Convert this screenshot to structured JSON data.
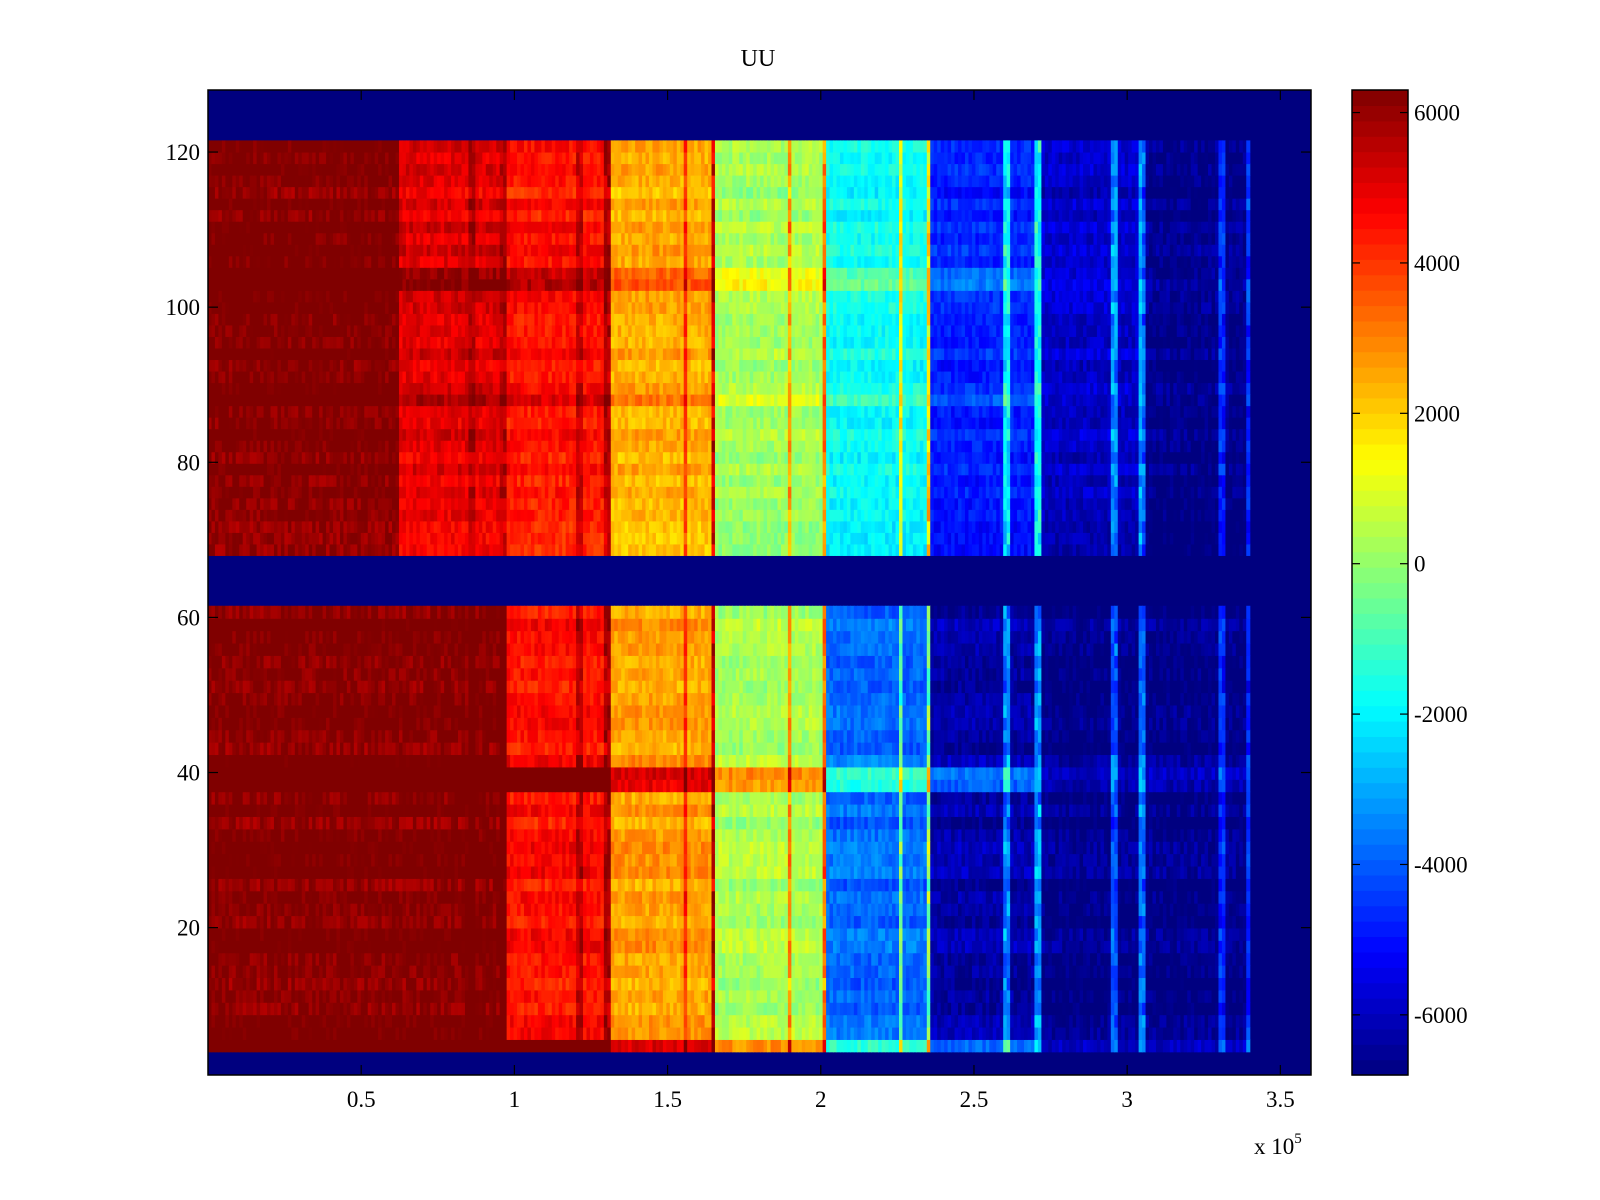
{
  "chart_data": {
    "type": "heatmap",
    "title": "UU",
    "xlabel": "",
    "ylabel": "",
    "x_multiplier_label": "x 10",
    "x_multiplier_exponent": "5",
    "x_multiplier": 100000,
    "xlim": [
      0,
      3.6
    ],
    "ylim": [
      1,
      128
    ],
    "x_ticks": [
      0.5,
      1,
      1.5,
      2,
      2.5,
      3,
      3.5
    ],
    "x_tick_labels": [
      "0.5",
      "1",
      "1.5",
      "2",
      "2.5",
      "3",
      "3.5"
    ],
    "y_ticks": [
      20,
      40,
      60,
      80,
      100,
      120
    ],
    "y_tick_labels": [
      "20",
      "40",
      "60",
      "80",
      "100",
      "120"
    ],
    "colormap": "jet",
    "clim": [
      -6800,
      6300
    ],
    "colorbar_ticks": [
      6000,
      4000,
      2000,
      0,
      -2000,
      -4000,
      -6000
    ],
    "colorbar_tick_labels": [
      "6000",
      "4000",
      "2000",
      "0",
      "-2000",
      "-4000",
      "-6000"
    ],
    "empty_row_bands": [
      [
        1,
        4
      ],
      [
        61.5,
        68
      ],
      [
        121.5,
        128
      ]
    ],
    "data_blocks": [
      {
        "y_range": [
          68,
          121.5
        ],
        "x_extent": 3.4
      },
      {
        "y_range": [
          4,
          61.5
        ],
        "x_extent": 3.4
      }
    ],
    "column_profile": {
      "x_edges": [
        0,
        0.28,
        0.62,
        0.97,
        1.31,
        1.66,
        2.02,
        2.36,
        2.72,
        3.05,
        3.4
      ],
      "upper_block_values": [
        6300,
        6300,
        5000,
        4400,
        2400,
        200,
        -1800,
        -4800,
        -5900,
        -6700
      ],
      "lower_block_values": [
        6300,
        6300,
        6300,
        4500,
        2600,
        300,
        -3800,
        -6300,
        -6700,
        -6700
      ]
    },
    "vertical_streaks": [
      {
        "x": 0.86,
        "value_shift": 800
      },
      {
        "x": 0.96,
        "value_shift": 700
      },
      {
        "x": 1.21,
        "value_shift": 1200
      },
      {
        "x": 1.3,
        "value_shift": 1500
      },
      {
        "x": 1.56,
        "value_shift": 2000
      },
      {
        "x": 1.65,
        "value_shift": 3500
      },
      {
        "x": 1.9,
        "value_shift": 3000
      },
      {
        "x": 2.01,
        "value_shift": 3500
      },
      {
        "x": 2.26,
        "value_shift": 4000
      },
      {
        "x": 2.35,
        "value_shift": 4500
      },
      {
        "x": 2.61,
        "value_shift": 3500
      },
      {
        "x": 2.71,
        "value_shift": 3800
      },
      {
        "x": 2.96,
        "value_shift": 3200
      },
      {
        "x": 3.05,
        "value_shift": 3500
      },
      {
        "x": 3.31,
        "value_shift": 2500
      },
      {
        "x": 3.4,
        "value_shift": 2500
      }
    ],
    "horizontal_streaks": [
      {
        "y": 4.5,
        "value_shift": 2500
      },
      {
        "y": 39,
        "value_shift": 2600
      },
      {
        "y": 88,
        "value_shift": 1000
      },
      {
        "y": 104,
        "value_shift": 1200
      }
    ]
  }
}
